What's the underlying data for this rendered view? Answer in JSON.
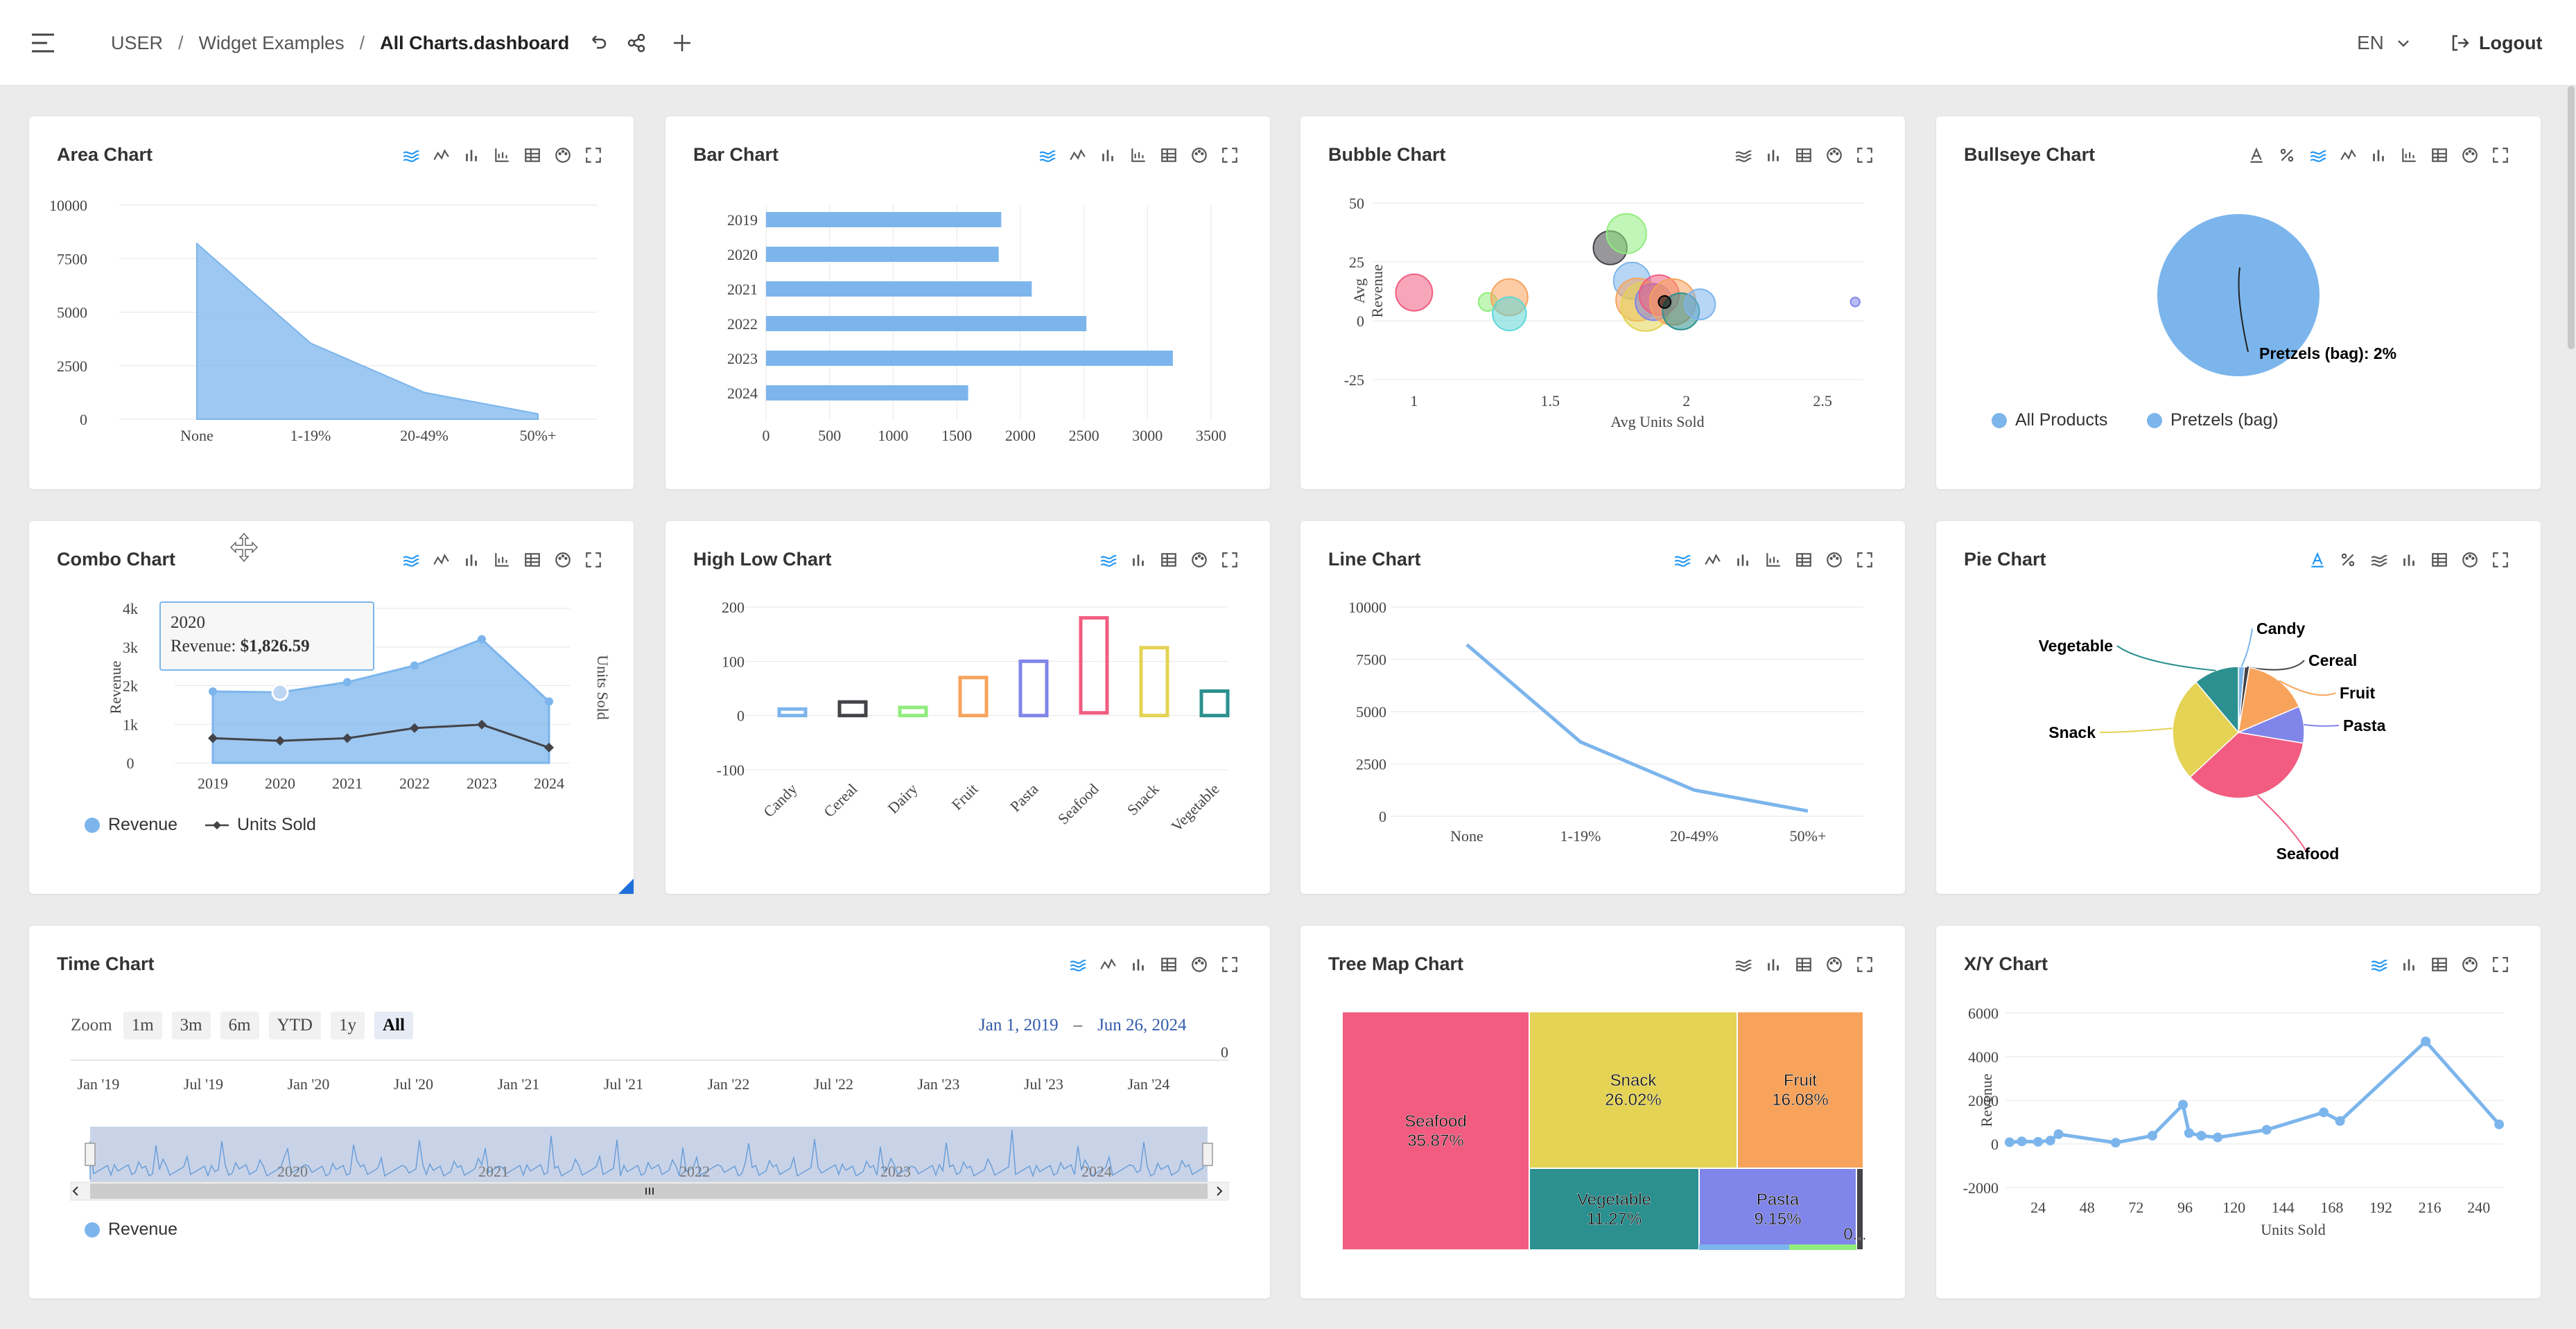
{
  "header": {
    "breadcrumb": [
      "USER",
      "Widget Examples",
      "All Charts.dashboard"
    ],
    "lang": "EN",
    "logout": "Logout"
  },
  "colors": {
    "accent": "#7cb5ec",
    "card": "#ffffff",
    "bg": "#ebebeb"
  },
  "cards": {
    "area": {
      "title": "Area Chart"
    },
    "bar": {
      "title": "Bar Chart"
    },
    "bubble": {
      "title": "Bubble Chart"
    },
    "bullseye": {
      "title": "Bullseye Chart",
      "legend": [
        "All Products",
        "Pretzels (bag)"
      ],
      "label": "Pretzels (bag): 2%"
    },
    "combo": {
      "title": "Combo Chart",
      "legend": [
        "Revenue",
        "Units Sold"
      ],
      "tooltip_year": "2020",
      "tooltip_label": "Revenue:",
      "tooltip_value": "$1,826.59"
    },
    "highlow": {
      "title": "High Low Chart"
    },
    "line": {
      "title": "Line Chart"
    },
    "pie": {
      "title": "Pie Chart"
    },
    "time": {
      "title": "Time Chart",
      "zoom_label": "Zoom",
      "zoom": [
        "1m",
        "3m",
        "6m",
        "YTD",
        "1y",
        "All"
      ],
      "range_from": "Jan 1, 2019",
      "range_to": "Jun 26, 2024",
      "legend": "Revenue",
      "y_zero": "0",
      "x_ticks": [
        "Jan '19",
        "Jul '19",
        "Jan '20",
        "Jul '20",
        "Jan '21",
        "Jul '21",
        "Jan '22",
        "Jul '22",
        "Jan '23",
        "Jul '23",
        "Jan '24"
      ],
      "nav_years": [
        "2020",
        "2021",
        "2022",
        "2023",
        "2024"
      ]
    },
    "treemap": {
      "title": "Tree Map Chart"
    },
    "xy": {
      "title": "X/Y Chart"
    }
  },
  "chart_data": [
    {
      "id": "area",
      "type": "area",
      "title": "Area Chart",
      "categories": [
        "None",
        "1-19%",
        "20-49%",
        "50%+"
      ],
      "values": [
        8200,
        3550,
        1250,
        250
      ],
      "ylim": [
        0,
        10000
      ],
      "yticks": [
        0,
        2500,
        5000,
        7500,
        10000
      ]
    },
    {
      "id": "bar",
      "type": "bar",
      "orientation": "horizontal",
      "title": "Bar Chart",
      "categories": [
        "2019",
        "2020",
        "2021",
        "2022",
        "2023",
        "2024"
      ],
      "values": [
        1850,
        1830,
        2090,
        2520,
        3200,
        1590
      ],
      "xlim": [
        0,
        3500
      ],
      "xticks": [
        0,
        500,
        1000,
        1500,
        2000,
        2500,
        3000,
        3500
      ]
    },
    {
      "id": "bubble",
      "type": "scatter",
      "title": "Bubble Chart",
      "xlabel": "Avg Units Sold",
      "ylabel": "Avg Revenue",
      "xlim": [
        0.85,
        2.65
      ],
      "ylim": [
        -25,
        50
      ],
      "xticks": [
        1,
        1.5,
        2,
        2.5
      ],
      "yticks": [
        -25,
        0,
        25,
        50
      ],
      "points": [
        {
          "x": 1,
          "y": 12,
          "r": 1.2,
          "c": "#f15c80"
        },
        {
          "x": 1.27,
          "y": 8,
          "r": 0.6,
          "c": "#90ed7d"
        },
        {
          "x": 1.35,
          "y": 10,
          "r": 1.2,
          "c": "#f7a35c"
        },
        {
          "x": 1.35,
          "y": 3,
          "r": 1.1,
          "c": "#5ed6d6"
        },
        {
          "x": 1.72,
          "y": 31,
          "r": 1.1,
          "c": "#434348"
        },
        {
          "x": 1.78,
          "y": 37,
          "r": 1.3,
          "c": "#90ed7d"
        },
        {
          "x": 1.8,
          "y": 17,
          "r": 1.2,
          "c": "#7cb5ec"
        },
        {
          "x": 1.82,
          "y": 9,
          "r": 1.4,
          "c": "#f7a35c"
        },
        {
          "x": 1.85,
          "y": 6,
          "r": 1.6,
          "c": "#e4d354"
        },
        {
          "x": 1.88,
          "y": 8,
          "r": 1.2,
          "c": "#8085e9"
        },
        {
          "x": 1.9,
          "y": 11,
          "r": 1.3,
          "c": "#f15c80"
        },
        {
          "x": 1.95,
          "y": 8,
          "r": 1.5,
          "c": "#f7a35c"
        },
        {
          "x": 1.98,
          "y": 4,
          "r": 1.2,
          "c": "#2b908f"
        },
        {
          "x": 2.05,
          "y": 7,
          "r": 1.0,
          "c": "#7cb5ec"
        },
        {
          "x": 1.92,
          "y": 8,
          "r": 0.4,
          "c": "#000000"
        },
        {
          "x": 2.62,
          "y": 8,
          "r": 0.3,
          "c": "#8085e9"
        }
      ]
    },
    {
      "id": "bullseye",
      "type": "pie",
      "title": "Bullseye Chart",
      "series": [
        {
          "name": "All Products",
          "value": 100
        },
        {
          "name": "Pretzels (bag)",
          "value": 2
        }
      ]
    },
    {
      "id": "combo",
      "type": "line",
      "title": "Combo Chart",
      "categories": [
        "2019",
        "2020",
        "2021",
        "2022",
        "2023",
        "2024"
      ],
      "series": [
        {
          "name": "Revenue",
          "type": "area",
          "values": [
            1850,
            1826.59,
            2090,
            2520,
            3200,
            1590
          ]
        },
        {
          "name": "Units Sold",
          "type": "line",
          "values": [
            290,
            260,
            290,
            410,
            450,
            180
          ]
        }
      ],
      "ylabel": "Revenue",
      "y2label": "Units Sold",
      "ylim": [
        0,
        4000
      ],
      "yticks": [
        "0",
        "1k",
        "2k",
        "3k",
        "4k"
      ]
    },
    {
      "id": "highlow",
      "type": "bar",
      "title": "High Low Chart",
      "categories": [
        "Candy",
        "Cereal",
        "Dairy",
        "Fruit",
        "Pasta",
        "Seafood",
        "Snack",
        "Vegetable"
      ],
      "series": [
        {
          "low": 0,
          "high": 12,
          "c": "#7cb5ec"
        },
        {
          "low": 0,
          "high": 25,
          "c": "#434348"
        },
        {
          "low": 0,
          "high": 15,
          "c": "#90ed7d"
        },
        {
          "low": 0,
          "high": 70,
          "c": "#f7a35c"
        },
        {
          "low": 0,
          "high": 100,
          "c": "#8085e9"
        },
        {
          "low": 5,
          "high": 180,
          "c": "#f15c80"
        },
        {
          "low": 0,
          "high": 125,
          "c": "#e4d354"
        },
        {
          "low": 0,
          "high": 45,
          "c": "#2b908f"
        }
      ],
      "ylim": [
        -100,
        200
      ],
      "yticks": [
        -100,
        0,
        100,
        200
      ]
    },
    {
      "id": "line",
      "type": "line",
      "title": "Line Chart",
      "categories": [
        "None",
        "1-19%",
        "20-49%",
        "50%+"
      ],
      "values": [
        8200,
        3550,
        1250,
        250
      ],
      "ylim": [
        0,
        10000
      ],
      "yticks": [
        0,
        2500,
        5000,
        7500,
        10000
      ]
    },
    {
      "id": "pie",
      "type": "pie",
      "title": "Pie Chart",
      "slices": [
        {
          "name": "Seafood",
          "value": 35.87,
          "c": "#f15c80"
        },
        {
          "name": "Snack",
          "value": 26.02,
          "c": "#e4d354"
        },
        {
          "name": "Vegetable",
          "value": 11.27,
          "c": "#2b908f"
        },
        {
          "name": "Candy",
          "value": 1.5,
          "c": "#7cb5ec"
        },
        {
          "name": "Cereal",
          "value": 1.2,
          "c": "#434348"
        },
        {
          "name": "Fruit",
          "value": 16.08,
          "c": "#f7a35c"
        },
        {
          "name": "Pasta",
          "value": 9.15,
          "c": "#8085e9"
        }
      ]
    },
    {
      "id": "time",
      "type": "area",
      "title": "Time Chart",
      "legend": "Revenue"
    },
    {
      "id": "treemap",
      "type": "treemap",
      "title": "Tree Map Chart",
      "tiles": [
        {
          "name": "Seafood",
          "pct": "35.87%",
          "c": "#f15c80"
        },
        {
          "name": "Snack",
          "pct": "26.02%",
          "c": "#e4d354"
        },
        {
          "name": "Fruit",
          "pct": "16.08%",
          "c": "#f7a35c"
        },
        {
          "name": "Vegetable",
          "pct": "11.27%",
          "c": "#2b908f"
        },
        {
          "name": "Pasta",
          "pct": "9.15%",
          "c": "#8085e9"
        },
        {
          "name": "0...",
          "pct": "",
          "c": "#434348"
        }
      ]
    },
    {
      "id": "xy",
      "type": "line",
      "title": "X/Y Chart",
      "xlabel": "Units Sold",
      "ylabel": "Revenue",
      "xlim": [
        8,
        252
      ],
      "ylim": [
        -2000,
        6000
      ],
      "xticks": [
        24,
        48,
        72,
        96,
        120,
        144,
        168,
        192,
        216,
        240
      ],
      "yticks": [
        -2000,
        0,
        2000,
        4000,
        6000
      ],
      "points": [
        [
          10,
          80
        ],
        [
          16,
          120
        ],
        [
          24,
          100
        ],
        [
          30,
          160
        ],
        [
          34,
          450
        ],
        [
          62,
          60
        ],
        [
          80,
          380
        ],
        [
          95,
          1800
        ],
        [
          98,
          500
        ],
        [
          104,
          380
        ],
        [
          112,
          300
        ],
        [
          136,
          650
        ],
        [
          164,
          1450
        ],
        [
          172,
          1050
        ],
        [
          214,
          4700
        ],
        [
          250,
          900
        ]
      ]
    }
  ]
}
